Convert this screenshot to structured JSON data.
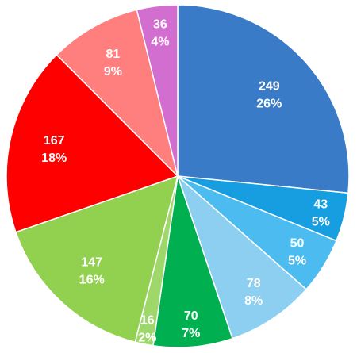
{
  "chart_data": {
    "type": "pie",
    "start_angle_deg": 0,
    "direction": "clockwise",
    "slices": [
      {
        "value": 249,
        "percent_label": "26%",
        "color": "#3a7bc8"
      },
      {
        "value": 43,
        "percent_label": "5%",
        "color": "#169ee0"
      },
      {
        "value": 50,
        "percent_label": "5%",
        "color": "#4bbbf0"
      },
      {
        "value": 78,
        "percent_label": "8%",
        "color": "#8ccff0"
      },
      {
        "value": 70,
        "percent_label": "7%",
        "color": "#00b050"
      },
      {
        "value": 16,
        "percent_label": "2%",
        "color": "#9ed86a"
      },
      {
        "value": 147,
        "percent_label": "16%",
        "color": "#92d050"
      },
      {
        "value": 167,
        "percent_label": "18%",
        "color": "#ff0000"
      },
      {
        "value": 81,
        "percent_label": "9%",
        "color": "#ff7f7f"
      },
      {
        "value": 36,
        "percent_label": "4%",
        "color": "#d36ed1"
      }
    ],
    "legend": "none",
    "slice_border_color": "#ffffff"
  }
}
